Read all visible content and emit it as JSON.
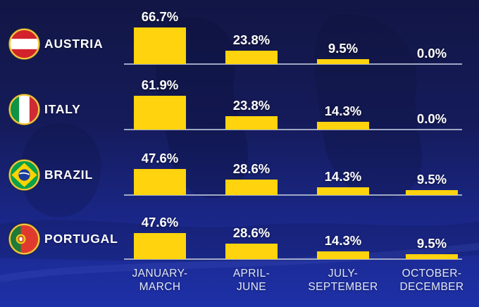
{
  "colors": {
    "bar_yellow": "#FFD30D",
    "background_top": "#121645",
    "background_bottom": "#1E30A8",
    "axis_line": "#AEB8D0",
    "value_text": "#FFFFFF",
    "country_text": "#FFFFFF",
    "category_text": "#E2E8F6",
    "flag_ring": "#F2C83C"
  },
  "chart_data": {
    "type": "bar",
    "title": "",
    "orientation": "vertical",
    "grid": false,
    "legend": "none",
    "value_suffix": "%",
    "ylim": [
      0,
      70
    ],
    "categories": [
      {
        "line1": "JANUARY-",
        "line2": "MARCH"
      },
      {
        "line1": "APRIL-",
        "line2": "JUNE"
      },
      {
        "line1": "JULY-",
        "line2": "SEPTEMBER"
      },
      {
        "line1": "OCTOBER-",
        "line2": "DECEMBER"
      }
    ],
    "series": [
      {
        "name": "AUSTRIA",
        "flag": "austria",
        "values": [
          66.7,
          23.8,
          9.5,
          0.0
        ],
        "labels": [
          "66.7%",
          "23.8%",
          "9.5%",
          "0.0%"
        ]
      },
      {
        "name": "ITALY",
        "flag": "italy",
        "values": [
          61.9,
          23.8,
          14.3,
          0.0
        ],
        "labels": [
          "61.9%",
          "23.8%",
          "14.3%",
          "0.0%"
        ]
      },
      {
        "name": "BRAZIL",
        "flag": "brazil",
        "values": [
          47.6,
          28.6,
          14.3,
          9.5
        ],
        "labels": [
          "47.6%",
          "28.6%",
          "14.3%",
          "9.5%"
        ]
      },
      {
        "name": "PORTUGAL",
        "flag": "portugal",
        "values": [
          47.6,
          28.6,
          14.3,
          9.5
        ],
        "labels": [
          "47.6%",
          "28.6%",
          "14.3%",
          "9.5%"
        ]
      }
    ]
  }
}
